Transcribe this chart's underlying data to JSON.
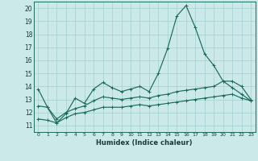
{
  "xlabel": "Humidex (Indice chaleur)",
  "xlim": [
    -0.5,
    23.5
  ],
  "ylim": [
    10.5,
    20.5
  ],
  "yticks": [
    11,
    12,
    13,
    14,
    15,
    16,
    17,
    18,
    19,
    20
  ],
  "xticks": [
    0,
    1,
    2,
    3,
    4,
    5,
    6,
    7,
    8,
    9,
    10,
    11,
    12,
    13,
    14,
    15,
    16,
    17,
    18,
    19,
    20,
    21,
    22,
    23
  ],
  "background_color": "#cce9e9",
  "grid_color": "#aad4d4",
  "line_color": "#1a6b5a",
  "x_main": [
    0,
    1,
    2,
    3,
    4,
    5,
    6,
    7,
    8,
    9,
    10,
    11,
    12,
    13,
    14,
    15,
    16,
    17,
    18,
    19,
    20,
    21,
    22,
    23
  ],
  "y_main": [
    13.8,
    12.4,
    11.2,
    11.9,
    13.1,
    12.7,
    13.8,
    14.3,
    13.9,
    13.6,
    13.8,
    14.0,
    13.6,
    15.0,
    16.9,
    19.4,
    20.2,
    18.5,
    16.5,
    15.6,
    14.4,
    13.9,
    13.4,
    12.9
  ],
  "y_line2": [
    12.5,
    12.4,
    11.5,
    12.0,
    12.3,
    12.5,
    12.9,
    13.2,
    13.1,
    13.0,
    13.1,
    13.2,
    13.1,
    13.3,
    13.4,
    13.6,
    13.7,
    13.8,
    13.9,
    14.0,
    14.4,
    14.4,
    14.0,
    13.0
  ],
  "y_line3": [
    11.5,
    11.4,
    11.2,
    11.6,
    11.9,
    12.0,
    12.2,
    12.4,
    12.4,
    12.4,
    12.5,
    12.6,
    12.5,
    12.6,
    12.7,
    12.8,
    12.9,
    13.0,
    13.1,
    13.2,
    13.3,
    13.4,
    13.1,
    12.9
  ]
}
